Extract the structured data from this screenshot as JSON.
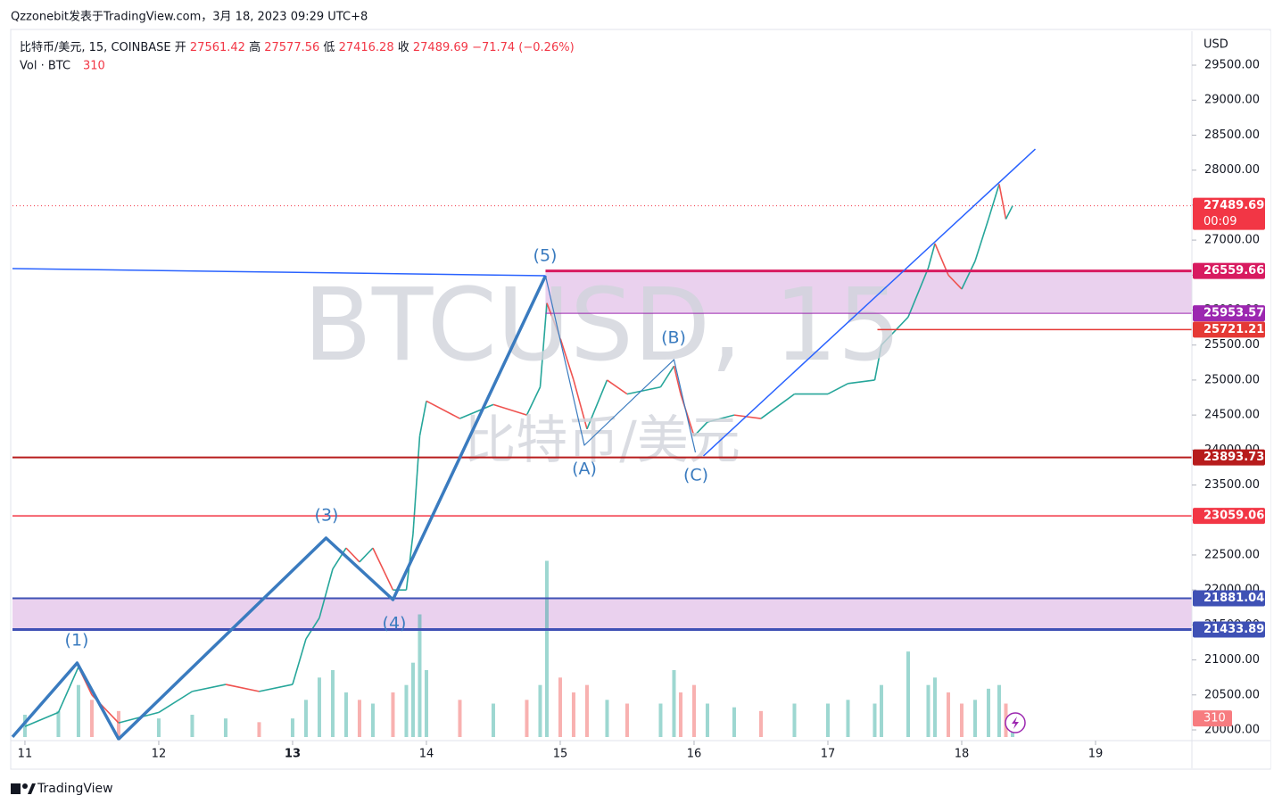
{
  "header": {
    "publisher": "Qzzonebit发表于TradingView.com，3月 18, 2023 09:29 UTC+8"
  },
  "legend": {
    "symbol": "比特币/美元, 15, COINBASE",
    "open_label": "开",
    "open": 27561.42,
    "high_label": "高",
    "high": 27577.56,
    "low_label": "低",
    "low": 27416.28,
    "close_label": "收",
    "close": 27489.69,
    "change": "−71.74 (−0.26%)",
    "volume_label": "Vol · BTC",
    "volume": 310
  },
  "watermark": {
    "symbol": "BTCUSD, 15",
    "name": "比特币/美元"
  },
  "currency": "USD",
  "countdown": "00:09",
  "footer": {
    "brand": "TradingView"
  },
  "annotations": [
    "(1)",
    "(3)",
    "(4)",
    "(5)",
    "(A)",
    "(B)",
    "(C)"
  ],
  "chart_data": {
    "type": "candlestick",
    "xlim": [
      10.907,
      19.72
    ],
    "xticks": [
      {
        "value": 11,
        "label": "11"
      },
      {
        "value": 12,
        "label": "12"
      },
      {
        "value": 13,
        "label": "13"
      },
      {
        "value": 14,
        "label": "14"
      },
      {
        "value": 15,
        "label": "15"
      },
      {
        "value": 16,
        "label": "16"
      },
      {
        "value": 17,
        "label": "17"
      },
      {
        "value": 18,
        "label": "18"
      },
      {
        "value": 19,
        "label": "19"
      }
    ],
    "ylim": [
      19847,
      29985
    ],
    "yticks": [
      {
        "value": 20000,
        "label": "20000.00"
      },
      {
        "value": 20500,
        "label": "20500.00"
      },
      {
        "value": 21000,
        "label": "21000.00"
      },
      {
        "value": 21500,
        "label": "21500.00"
      },
      {
        "value": 22000,
        "label": "22000.00"
      },
      {
        "value": 22500,
        "label": "22500.00"
      },
      {
        "value": 23000,
        "label": "23000.00"
      },
      {
        "value": 23500,
        "label": "23500.00"
      },
      {
        "value": 24000,
        "label": "24000.00"
      },
      {
        "value": 24500,
        "label": "24500.00"
      },
      {
        "value": 25000,
        "label": "25000.00"
      },
      {
        "value": 25500,
        "label": "25500.00"
      },
      {
        "value": 26000,
        "label": "26000.00"
      },
      {
        "value": 26500,
        "label": "26500.00"
      },
      {
        "value": 27000,
        "label": "27000.00"
      },
      {
        "value": 27500,
        "label": "27500.00"
      },
      {
        "value": 28000,
        "label": "28000.00"
      },
      {
        "value": 28500,
        "label": "28500.00"
      },
      {
        "value": 29000,
        "label": "29000.00"
      },
      {
        "value": 29500,
        "label": "29500.00"
      }
    ],
    "volume_ylim": [
      0,
      3000
    ],
    "up_color": "#26a69a",
    "down_color": "#ef5350",
    "x": [
      11.0,
      11.25,
      11.4,
      11.5,
      11.7,
      12.0,
      12.25,
      12.5,
      12.75,
      13.0,
      13.1,
      13.2,
      13.3,
      13.4,
      13.5,
      13.6,
      13.75,
      13.85,
      13.9,
      13.95,
      14.0,
      14.25,
      14.5,
      14.75,
      14.85,
      14.9,
      15.0,
      15.1,
      15.2,
      15.35,
      15.5,
      15.75,
      15.85,
      15.9,
      16.0,
      16.1,
      16.3,
      16.5,
      16.75,
      17.0,
      17.15,
      17.35,
      17.4,
      17.6,
      17.75,
      17.8,
      17.9,
      18.0,
      18.1,
      18.2,
      18.28,
      18.33,
      18.38
    ],
    "close": [
      20050,
      20250,
      20900,
      20500,
      20100,
      20250,
      20550,
      20650,
      20550,
      20650,
      21300,
      21600,
      22300,
      22600,
      22400,
      22600,
      22000,
      22000,
      22800,
      24200,
      24700,
      24450,
      24650,
      24500,
      24900,
      26100,
      25600,
      25000,
      24300,
      25000,
      24800,
      24900,
      25200,
      24800,
      24200,
      24400,
      24500,
      24450,
      24800,
      24800,
      24950,
      25000,
      25500,
      25900,
      26600,
      26950,
      26500,
      26300,
      26700,
      27300,
      27800,
      27300,
      27489.69
    ],
    "volume": [
      300,
      350,
      700,
      500,
      350,
      250,
      300,
      250,
      200,
      250,
      500,
      800,
      900,
      600,
      500,
      450,
      600,
      700,
      1000,
      1650,
      900,
      500,
      450,
      500,
      700,
      2370,
      800,
      600,
      700,
      500,
      450,
      450,
      900,
      600,
      700,
      450,
      400,
      350,
      450,
      450,
      500,
      450,
      700,
      1150,
      700,
      800,
      600,
      450,
      500,
      650,
      700,
      450,
      310
    ],
    "levels": [
      {
        "value": 26559.66,
        "color": "#d81b60",
        "start": 14.89,
        "width": 3
      },
      {
        "value": 25953.57,
        "color": "#9c27b0",
        "start": 14.89,
        "width": 1
      },
      {
        "value": 25721.21,
        "color": "#e53935",
        "start": 17.37,
        "width": 1.5
      },
      {
        "value": 23893.73,
        "color": "#b71c1c",
        "start": 10.907,
        "width": 2
      },
      {
        "value": 23059.06,
        "color": "#f23645",
        "start": 10.907,
        "width": 1.5
      },
      {
        "value": 21881.04,
        "color": "#3f51b5",
        "start": 10.907,
        "width": 2
      },
      {
        "value": 21433.89,
        "color": "#3f51b5",
        "start": 10.907,
        "width": 3
      }
    ],
    "zones": [
      {
        "from": 25953.57,
        "to": 26559.66,
        "start": 14.89
      },
      {
        "from": 21433.89,
        "to": 21881.04,
        "start": 10.907
      }
    ],
    "waves": [
      {
        "color": "#3a7bbf",
        "width": 3.5,
        "points": [
          [
            10.907,
            19900
          ],
          [
            11.39,
            20956
          ],
          [
            11.7,
            19870
          ],
          [
            13.25,
            22742
          ],
          [
            13.75,
            21862
          ],
          [
            14.89,
            26491
          ]
        ]
      },
      {
        "color": "#3a7bbf",
        "width": 1.2,
        "points": [
          [
            14.89,
            26491
          ],
          [
            15.18,
            24068
          ],
          [
            15.85,
            25292
          ],
          [
            16.01,
            23966
          ]
        ]
      },
      {
        "color": "#2962ff",
        "width": 1.5,
        "points": [
          [
            16.07,
            23915
          ],
          [
            18.55,
            28301
          ]
        ]
      },
      {
        "color": "#2962ff",
        "width": 1.5,
        "points": [
          [
            10.907,
            26593
          ],
          [
            14.89,
            26491
          ]
        ]
      }
    ]
  }
}
